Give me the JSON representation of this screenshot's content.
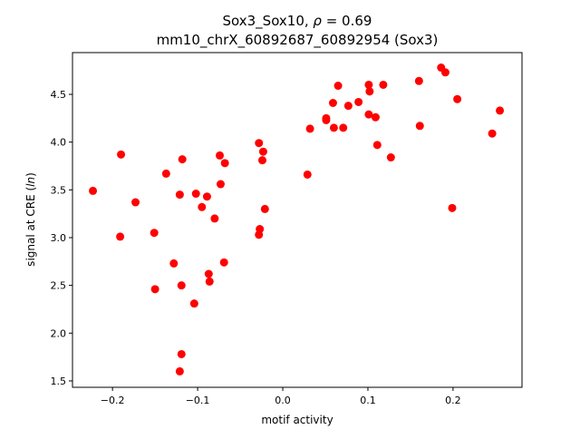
{
  "chart_data": {
    "type": "scatter",
    "title_line1_prefix": "Sox3_Sox10, ",
    "title_rho_symbol": "ρ",
    "title_rho_value": " = 0.69",
    "title_line2": "mm10_chrX_60892687_60892954 (Sox3)",
    "xlabel": "motif activity",
    "ylabel_prefix": "signal at CRE (",
    "ylabel_italic": "ln",
    "ylabel_suffix": ")",
    "xlim": [
      -0.247,
      0.281
    ],
    "ylim": [
      1.433,
      4.937
    ],
    "xticks": [
      -0.2,
      -0.1,
      0.0,
      0.1,
      0.2
    ],
    "xtick_labels": [
      "−0.2",
      "−0.1",
      "0.0",
      "0.1",
      "0.2"
    ],
    "yticks": [
      1.5,
      2.0,
      2.5,
      3.0,
      3.5,
      4.0,
      4.5
    ],
    "ytick_labels": [
      "1.5",
      "2.0",
      "2.5",
      "3.0",
      "3.5",
      "4.0",
      "4.5"
    ],
    "grid": false,
    "marker_color": "#ff0000",
    "points": [
      [
        -0.223,
        3.49
      ],
      [
        -0.19,
        3.87
      ],
      [
        -0.191,
        3.01
      ],
      [
        -0.173,
        3.37
      ],
      [
        -0.151,
        3.05
      ],
      [
        -0.15,
        2.46
      ],
      [
        -0.137,
        3.67
      ],
      [
        -0.128,
        2.73
      ],
      [
        -0.121,
        3.45
      ],
      [
        -0.118,
        3.82
      ],
      [
        -0.119,
        2.5
      ],
      [
        -0.119,
        1.78
      ],
      [
        -0.121,
        1.6
      ],
      [
        -0.104,
        2.31
      ],
      [
        -0.102,
        3.46
      ],
      [
        -0.095,
        3.32
      ],
      [
        -0.089,
        3.43
      ],
      [
        -0.087,
        2.62
      ],
      [
        -0.086,
        2.54
      ],
      [
        -0.08,
        3.2
      ],
      [
        -0.074,
        3.86
      ],
      [
        -0.073,
        3.56
      ],
      [
        -0.068,
        3.78
      ],
      [
        -0.069,
        2.74
      ],
      [
        -0.028,
        3.99
      ],
      [
        -0.023,
        3.9
      ],
      [
        -0.024,
        3.81
      ],
      [
        -0.027,
        3.09
      ],
      [
        -0.028,
        3.03
      ],
      [
        -0.021,
        3.3
      ],
      [
        0.029,
        3.66
      ],
      [
        0.032,
        4.14
      ],
      [
        0.051,
        4.25
      ],
      [
        0.051,
        4.23
      ],
      [
        0.059,
        4.41
      ],
      [
        0.06,
        4.15
      ],
      [
        0.065,
        4.59
      ],
      [
        0.071,
        4.15
      ],
      [
        0.077,
        4.38
      ],
      [
        0.089,
        4.42
      ],
      [
        0.101,
        4.6
      ],
      [
        0.102,
        4.53
      ],
      [
        0.101,
        4.29
      ],
      [
        0.109,
        4.26
      ],
      [
        0.111,
        3.97
      ],
      [
        0.118,
        4.6
      ],
      [
        0.127,
        3.84
      ],
      [
        0.16,
        4.64
      ],
      [
        0.161,
        4.17
      ],
      [
        0.186,
        4.78
      ],
      [
        0.191,
        4.73
      ],
      [
        0.199,
        3.31
      ],
      [
        0.205,
        4.45
      ],
      [
        0.246,
        4.09
      ],
      [
        0.255,
        4.33
      ]
    ]
  }
}
